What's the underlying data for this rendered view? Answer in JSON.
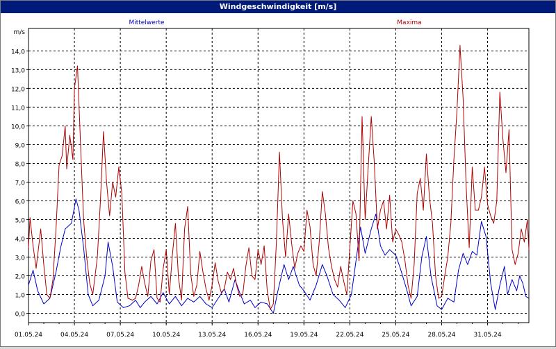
{
  "window": {
    "title": "Windgeschwindigkeit [m/s]"
  },
  "chart_data": {
    "type": "line",
    "title": "Windgeschwindigkeit [m/s]",
    "ylabel": "m/s",
    "xlabel": "",
    "ylim": [
      -0.5,
      15.2
    ],
    "xlim": [
      "01.05.24",
      "01.06.24 07:00"
    ],
    "grid": true,
    "legend": "top",
    "y_ticks": [
      "0,0",
      "1,0",
      "2,0",
      "3,0",
      "4,0",
      "5,0",
      "6,0",
      "7,0",
      "8,0",
      "9,0",
      "10,0",
      "11,0",
      "12,0",
      "13,0",
      "14,0"
    ],
    "x_ticks": [
      "01.05.24",
      "04.05.24",
      "07.05.24",
      "10.05.24",
      "13.05.24",
      "16.05.24",
      "19.05.24",
      "22.05.24",
      "25.05.24",
      "28.05.24",
      "31.05.24"
    ],
    "series": [
      {
        "name": "Mittelwerte",
        "color": "#0000cc",
        "points": [
          [
            0,
            1.5
          ],
          [
            0.3,
            2.3
          ],
          [
            0.6,
            1.2
          ],
          [
            1,
            0.5
          ],
          [
            1.4,
            0.8
          ],
          [
            1.8,
            2.2
          ],
          [
            2.1,
            3.5
          ],
          [
            2.4,
            4.5
          ],
          [
            2.8,
            4.8
          ],
          [
            3.1,
            6.1
          ],
          [
            3.3,
            5.5
          ],
          [
            3.6,
            3.5
          ],
          [
            3.9,
            1.0
          ],
          [
            4.2,
            0.4
          ],
          [
            4.6,
            0.7
          ],
          [
            5,
            2.0
          ],
          [
            5.2,
            3.8
          ],
          [
            5.5,
            2.5
          ],
          [
            5.8,
            0.6
          ],
          [
            6.2,
            0.3
          ],
          [
            6.6,
            0.4
          ],
          [
            7,
            0.7
          ],
          [
            7.3,
            0.3
          ],
          [
            7.6,
            0.6
          ],
          [
            8,
            0.9
          ],
          [
            8.4,
            0.5
          ],
          [
            8.8,
            1.1
          ],
          [
            9.2,
            0.5
          ],
          [
            9.6,
            0.9
          ],
          [
            10,
            0.4
          ],
          [
            10.4,
            0.8
          ],
          [
            10.8,
            0.6
          ],
          [
            11.2,
            0.9
          ],
          [
            11.6,
            0.5
          ],
          [
            12,
            0.3
          ],
          [
            12.4,
            0.8
          ],
          [
            12.8,
            1.3
          ],
          [
            13.1,
            0.6
          ],
          [
            13.5,
            1.8
          ],
          [
            13.8,
            1.1
          ],
          [
            14.1,
            0.5
          ],
          [
            14.5,
            0.7
          ],
          [
            14.8,
            0.3
          ],
          [
            15.2,
            0.6
          ],
          [
            15.6,
            0.5
          ],
          [
            16,
            0.0
          ],
          [
            16.3,
            1.2
          ],
          [
            16.7,
            2.6
          ],
          [
            17,
            1.8
          ],
          [
            17.3,
            2.5
          ],
          [
            17.7,
            1.5
          ],
          [
            18,
            1.2
          ],
          [
            18.4,
            0.7
          ],
          [
            18.8,
            1.5
          ],
          [
            19.2,
            2.6
          ],
          [
            19.5,
            2.0
          ],
          [
            19.9,
            1.0
          ],
          [
            20.3,
            0.7
          ],
          [
            20.7,
            0.3
          ],
          [
            21.1,
            1.0
          ],
          [
            21.4,
            2.8
          ],
          [
            21.7,
            4.6
          ],
          [
            22,
            3.2
          ],
          [
            22.4,
            4.5
          ],
          [
            22.7,
            5.3
          ],
          [
            23,
            3.6
          ],
          [
            23.3,
            3.1
          ],
          [
            23.6,
            3.4
          ],
          [
            24,
            3.1
          ],
          [
            24.3,
            2.4
          ],
          [
            24.7,
            1.3
          ],
          [
            25,
            0.4
          ],
          [
            25.4,
            0.9
          ],
          [
            25.7,
            3.0
          ],
          [
            26,
            4.1
          ],
          [
            26.3,
            2.0
          ],
          [
            26.7,
            0.4
          ],
          [
            27,
            0.2
          ],
          [
            27.4,
            0.8
          ],
          [
            27.8,
            0.6
          ],
          [
            28.1,
            2.3
          ],
          [
            28.4,
            3.2
          ],
          [
            28.7,
            2.6
          ],
          [
            29,
            3.3
          ],
          [
            29.3,
            3.1
          ],
          [
            29.6,
            4.9
          ],
          [
            29.9,
            4.1
          ],
          [
            30.2,
            1.6
          ],
          [
            30.5,
            0.2
          ],
          [
            30.8,
            1.5
          ],
          [
            31.1,
            2.5
          ],
          [
            31.3,
            1.0
          ],
          [
            31.6,
            1.8
          ],
          [
            31.9,
            1.2
          ],
          [
            32.1,
            2.0
          ],
          [
            32.3,
            1.6
          ],
          [
            32.5,
            0.9
          ],
          [
            32.7,
            0.8
          ]
        ]
      },
      {
        "name": "Maxima",
        "color": "#b00000",
        "points": [
          [
            0,
            3.5
          ],
          [
            0.1,
            5.1
          ],
          [
            0.3,
            3.6
          ],
          [
            0.5,
            2.4
          ],
          [
            0.8,
            4.5
          ],
          [
            1.0,
            2.6
          ],
          [
            1.2,
            1.0
          ],
          [
            1.4,
            0.8
          ],
          [
            1.6,
            1.8
          ],
          [
            1.8,
            4.5
          ],
          [
            2.0,
            7.9
          ],
          [
            2.2,
            8.4
          ],
          [
            2.4,
            10.0
          ],
          [
            2.5,
            7.7
          ],
          [
            2.7,
            9.5
          ],
          [
            2.9,
            8.2
          ],
          [
            3.0,
            12.0
          ],
          [
            3.2,
            13.2
          ],
          [
            3.4,
            9.0
          ],
          [
            3.6,
            5.0
          ],
          [
            3.8,
            3.0
          ],
          [
            4.0,
            1.6
          ],
          [
            4.2,
            1.0
          ],
          [
            4.5,
            3.0
          ],
          [
            4.7,
            6.0
          ],
          [
            4.9,
            9.7
          ],
          [
            5.1,
            7.0
          ],
          [
            5.3,
            5.2
          ],
          [
            5.5,
            7.0
          ],
          [
            5.7,
            6.2
          ],
          [
            5.9,
            7.8
          ],
          [
            6.1,
            6.4
          ],
          [
            6.3,
            2.2
          ],
          [
            6.5,
            0.8
          ],
          [
            6.8,
            0.7
          ],
          [
            7.0,
            0.8
          ],
          [
            7.2,
            1.5
          ],
          [
            7.4,
            2.5
          ],
          [
            7.6,
            1.6
          ],
          [
            7.8,
            0.9
          ],
          [
            8.0,
            2.8
          ],
          [
            8.2,
            3.4
          ],
          [
            8.4,
            0.8
          ],
          [
            8.6,
            0.6
          ],
          [
            8.8,
            2.4
          ],
          [
            9.0,
            3.4
          ],
          [
            9.2,
            1.0
          ],
          [
            9.4,
            3.1
          ],
          [
            9.6,
            4.8
          ],
          [
            9.8,
            1.9
          ],
          [
            10.0,
            0.7
          ],
          [
            10.2,
            4.5
          ],
          [
            10.4,
            5.7
          ],
          [
            10.6,
            2.1
          ],
          [
            10.8,
            0.9
          ],
          [
            11.0,
            1.5
          ],
          [
            11.2,
            3.3
          ],
          [
            11.4,
            2.2
          ],
          [
            11.6,
            1.3
          ],
          [
            11.8,
            0.7
          ],
          [
            12.0,
            1.5
          ],
          [
            12.2,
            2.7
          ],
          [
            12.4,
            1.7
          ],
          [
            12.6,
            1.1
          ],
          [
            12.8,
            1.3
          ],
          [
            13.0,
            2.2
          ],
          [
            13.2,
            1.8
          ],
          [
            13.4,
            2.4
          ],
          [
            13.6,
            1.5
          ],
          [
            13.8,
            0.9
          ],
          [
            14.0,
            1.0
          ],
          [
            14.2,
            2.5
          ],
          [
            14.4,
            3.5
          ],
          [
            14.6,
            2.0
          ],
          [
            14.8,
            1.8
          ],
          [
            15.0,
            3.4
          ],
          [
            15.2,
            2.6
          ],
          [
            15.4,
            3.6
          ],
          [
            15.6,
            1.2
          ],
          [
            15.8,
            0.2
          ],
          [
            16.0,
            0.5
          ],
          [
            16.2,
            3.8
          ],
          [
            16.4,
            8.6
          ],
          [
            16.6,
            5.0
          ],
          [
            16.8,
            3.0
          ],
          [
            17.0,
            5.3
          ],
          [
            17.2,
            3.7
          ],
          [
            17.4,
            2.4
          ],
          [
            17.6,
            3.2
          ],
          [
            17.8,
            3.6
          ],
          [
            18.0,
            3.3
          ],
          [
            18.2,
            5.5
          ],
          [
            18.4,
            4.6
          ],
          [
            18.6,
            2.6
          ],
          [
            18.8,
            2.0
          ],
          [
            19.0,
            3.8
          ],
          [
            19.2,
            6.5
          ],
          [
            19.4,
            5.3
          ],
          [
            19.6,
            3.5
          ],
          [
            19.8,
            2.5
          ],
          [
            20.0,
            1.8
          ],
          [
            20.2,
            1.4
          ],
          [
            20.4,
            2.5
          ],
          [
            20.6,
            1.7
          ],
          [
            20.8,
            1.0
          ],
          [
            21.0,
            3.5
          ],
          [
            21.2,
            6.0
          ],
          [
            21.4,
            5.3
          ],
          [
            21.6,
            2.8
          ],
          [
            21.8,
            10.5
          ],
          [
            22.0,
            5.0
          ],
          [
            22.2,
            7.8
          ],
          [
            22.4,
            10.5
          ],
          [
            22.6,
            8.0
          ],
          [
            22.8,
            4.5
          ],
          [
            23.0,
            5.5
          ],
          [
            23.2,
            6.0
          ],
          [
            23.4,
            4.5
          ],
          [
            23.6,
            6.3
          ],
          [
            23.8,
            3.8
          ],
          [
            24.0,
            4.5
          ],
          [
            24.2,
            4.2
          ],
          [
            24.4,
            3.8
          ],
          [
            24.6,
            2.8
          ],
          [
            24.8,
            1.5
          ],
          [
            25.0,
            0.8
          ],
          [
            25.2,
            2.6
          ],
          [
            25.4,
            6.4
          ],
          [
            25.6,
            7.2
          ],
          [
            25.8,
            5.5
          ],
          [
            26.0,
            8.5
          ],
          [
            26.2,
            6.2
          ],
          [
            26.4,
            4.8
          ],
          [
            26.6,
            2.0
          ],
          [
            26.8,
            0.8
          ],
          [
            27.0,
            0.9
          ],
          [
            27.2,
            2.0
          ],
          [
            27.4,
            3.0
          ],
          [
            27.6,
            4.8
          ],
          [
            27.8,
            8.2
          ],
          [
            28.0,
            10.8
          ],
          [
            28.2,
            14.3
          ],
          [
            28.4,
            11.5
          ],
          [
            28.6,
            6.8
          ],
          [
            28.8,
            3.5
          ],
          [
            29.0,
            7.8
          ],
          [
            29.2,
            5.5
          ],
          [
            29.4,
            5.5
          ],
          [
            29.6,
            6.2
          ],
          [
            29.8,
            7.8
          ],
          [
            30.0,
            5.8
          ],
          [
            30.2,
            5.2
          ],
          [
            30.4,
            4.8
          ],
          [
            30.6,
            6.0
          ],
          [
            30.8,
            11.8
          ],
          [
            31.0,
            9.3
          ],
          [
            31.2,
            7.5
          ],
          [
            31.4,
            9.8
          ],
          [
            31.6,
            3.4
          ],
          [
            31.8,
            2.6
          ],
          [
            32.0,
            3.2
          ],
          [
            32.2,
            4.5
          ],
          [
            32.4,
            3.8
          ],
          [
            32.6,
            5.0
          ],
          [
            32.7,
            3.4
          ]
        ]
      }
    ]
  }
}
